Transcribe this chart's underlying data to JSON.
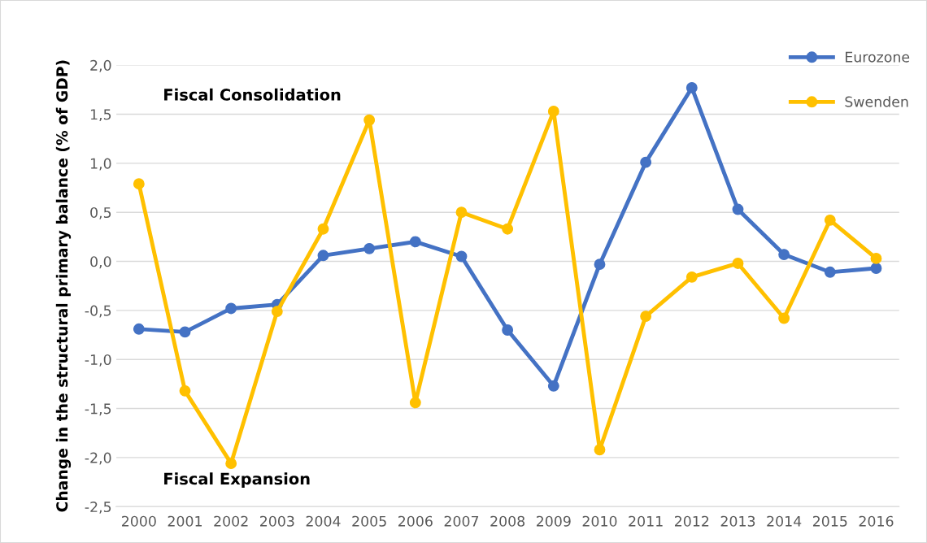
{
  "chart_data": {
    "type": "line",
    "ylabel": "Change in the structural primary balance (% of GDP)",
    "annotations": [
      "Fiscal Consolidation",
      "Fiscal Expansion"
    ],
    "categories": [
      "2000",
      "2001",
      "2002",
      "2003",
      "2004",
      "2005",
      "2006",
      "2007",
      "2008",
      "2009",
      "2010",
      "2011",
      "2012",
      "2013",
      "2014",
      "2015",
      "2016"
    ],
    "series": [
      {
        "name": "Eurozone",
        "color": "#4472c4",
        "values": [
          -0.69,
          -0.72,
          -0.48,
          -0.44,
          0.06,
          0.13,
          0.2,
          0.05,
          -0.7,
          -1.27,
          -0.03,
          1.01,
          1.77,
          0.53,
          0.07,
          -0.11,
          -0.07
        ]
      },
      {
        "name": "Swenden",
        "color": "#ffc000",
        "values": [
          0.79,
          -1.32,
          -2.06,
          -0.51,
          0.33,
          1.44,
          -1.44,
          0.5,
          0.33,
          1.53,
          -1.92,
          -0.56,
          -0.16,
          -0.02,
          -0.58,
          0.42,
          0.03
        ]
      }
    ],
    "ylim": [
      -2.5,
      2.0
    ],
    "yticks": [
      {
        "value": -2.5,
        "label": "-2,5"
      },
      {
        "value": -2.0,
        "label": "-2,0"
      },
      {
        "value": -1.5,
        "label": "-1,5"
      },
      {
        "value": -1.0,
        "label": "-1,0"
      },
      {
        "value": -0.5,
        "label": "-0,5"
      },
      {
        "value": 0.0,
        "label": "0,0"
      },
      {
        "value": 0.5,
        "label": "0,5"
      },
      {
        "value": 1.0,
        "label": "1,0"
      },
      {
        "value": 1.5,
        "label": "1,5"
      },
      {
        "value": 2.0,
        "label": "2,0"
      }
    ],
    "grid": "y",
    "legend": "top right",
    "marker": "circle",
    "line_style": "solid"
  }
}
